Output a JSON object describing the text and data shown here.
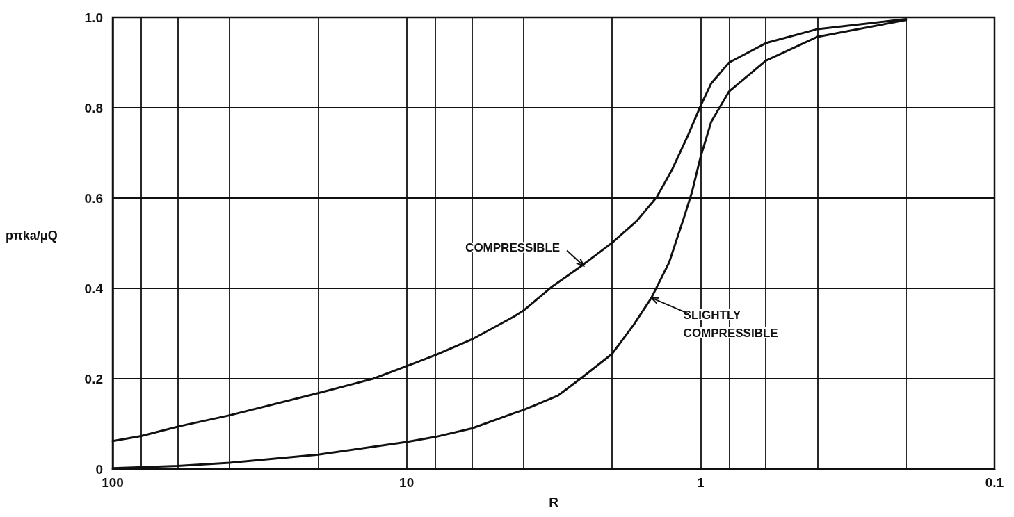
{
  "chart_data": {
    "type": "line",
    "xlabel": "R",
    "ylabel": "pπka/μQ",
    "log": "x",
    "xlim": [
      100,
      0.1
    ],
    "xticks": [
      100,
      {
        "value": 80,
        "label": null
      },
      {
        "value": 60,
        "label": null
      },
      {
        "value": 40,
        "label": null
      },
      {
        "value": 20,
        "label": null
      },
      10,
      {
        "value": 8,
        "label": null
      },
      {
        "value": 6,
        "label": null
      },
      {
        "value": 4,
        "label": null
      },
      {
        "value": 2,
        "label": null
      },
      1,
      {
        "value": 0.8,
        "label": null
      },
      {
        "value": 0.6,
        "label": null
      },
      {
        "value": 0.4,
        "label": null
      },
      {
        "value": 0.2,
        "label": null
      },
      0.1
    ],
    "ylim": [
      0,
      1
    ],
    "yticks": [
      0,
      0.2,
      0.4,
      0.6,
      0.8,
      {
        "value": 1,
        "label": "1.0"
      }
    ],
    "grid": true,
    "marker": "none",
    "line_style": "solid",
    "series": [
      {
        "color": "#111111",
        "x": [
          100,
          80,
          60,
          40,
          20,
          13,
          10,
          8,
          6,
          4.3,
          4,
          3.2,
          2.54,
          2,
          1.65,
          1.41,
          1.25,
          1.1,
          1,
          0.92,
          0.8,
          0.6,
          0.4,
          0.2
        ],
        "values": [
          0.062,
          0.073,
          0.094,
          0.119,
          0.168,
          0.2,
          0.228,
          0.252,
          0.287,
          0.338,
          0.351,
          0.404,
          0.45,
          0.501,
          0.549,
          0.602,
          0.663,
          0.741,
          0.804,
          0.854,
          0.9,
          0.943,
          0.974,
          0.996
        ]
      },
      {
        "color": "#111111",
        "x": [
          100,
          60,
          40,
          20,
          10,
          8,
          6,
          4.3,
          4,
          3.05,
          2.54,
          2,
          1.69,
          1.47,
          1.28,
          1.14,
          1.07,
          1,
          0.92,
          0.8,
          0.6,
          0.4,
          0.2
        ],
        "values": [
          0.002,
          0.007,
          0.014,
          0.032,
          0.06,
          0.071,
          0.09,
          0.124,
          0.131,
          0.163,
          0.202,
          0.255,
          0.319,
          0.379,
          0.457,
          0.556,
          0.613,
          0.691,
          0.769,
          0.836,
          0.904,
          0.957,
          0.994
        ]
      }
    ],
    "annotations": [
      {
        "text": "COMPRESSIBLE",
        "x": 2.5,
        "y": 0.45
      },
      {
        "text": "SLIGHTLY COMPRESSIBLE",
        "x": 1.47,
        "y": 0.379
      }
    ]
  }
}
